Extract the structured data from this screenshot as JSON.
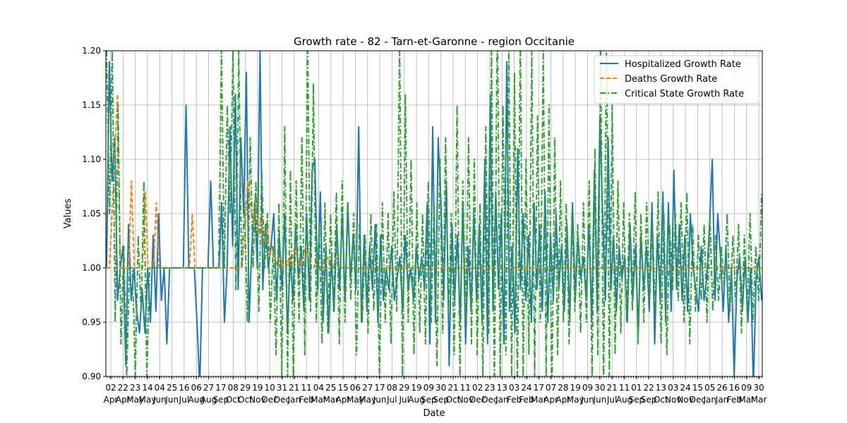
{
  "chart_data": {
    "type": "line",
    "title": "Growth rate - 82 - Tarn-et-Garonne - region Occitanie",
    "xlabel": "Date",
    "ylabel": "Values",
    "ylim": [
      0.9,
      1.2
    ],
    "grid": true,
    "legend_position": "top-right",
    "yticks": [
      "0.90",
      "0.95",
      "1.00",
      "1.05",
      "1.10",
      "1.15",
      "1.20"
    ],
    "xticks": [
      {
        "day": "02",
        "month": "Apr"
      },
      {
        "day": "22",
        "month": "Apr"
      },
      {
        "day": "23",
        "month": "May"
      },
      {
        "day": "14",
        "month": "May"
      },
      {
        "day": "04",
        "month": "Jun"
      },
      {
        "day": "25",
        "month": "Jun"
      },
      {
        "day": "16",
        "month": "Jul"
      },
      {
        "day": "06",
        "month": "Aug"
      },
      {
        "day": "27",
        "month": "Aug"
      },
      {
        "day": "17",
        "month": "Sep"
      },
      {
        "day": "08",
        "month": "Oct"
      },
      {
        "day": "29",
        "month": "Oct"
      },
      {
        "day": "19",
        "month": "Nov"
      },
      {
        "day": "10",
        "month": "Dec"
      },
      {
        "day": "31",
        "month": "Dec"
      },
      {
        "day": "21",
        "month": "Jan"
      },
      {
        "day": "11",
        "month": "Feb"
      },
      {
        "day": "04",
        "month": "Mar"
      },
      {
        "day": "25",
        "month": "Mar"
      },
      {
        "day": "15",
        "month": "Apr"
      },
      {
        "day": "06",
        "month": "May"
      },
      {
        "day": "27",
        "month": "May"
      },
      {
        "day": "17",
        "month": "Jun"
      },
      {
        "day": "08",
        "month": "Jul"
      },
      {
        "day": "29",
        "month": "Jul"
      },
      {
        "day": "19",
        "month": "Aug"
      },
      {
        "day": "09",
        "month": "Sep"
      },
      {
        "day": "30",
        "month": "Sep"
      },
      {
        "day": "21",
        "month": "Oct"
      },
      {
        "day": "11",
        "month": "Nov"
      },
      {
        "day": "02",
        "month": "Dec"
      },
      {
        "day": "23",
        "month": "Dec"
      },
      {
        "day": "13",
        "month": "Jan"
      },
      {
        "day": "03",
        "month": "Feb"
      },
      {
        "day": "24",
        "month": "Feb"
      },
      {
        "day": "17",
        "month": "Mar"
      },
      {
        "day": "07",
        "month": "Apr"
      },
      {
        "day": "28",
        "month": "Apr"
      },
      {
        "day": "19",
        "month": "May"
      },
      {
        "day": "09",
        "month": "Jun"
      },
      {
        "day": "30",
        "month": "Jun"
      },
      {
        "day": "21",
        "month": "Jul"
      },
      {
        "day": "11",
        "month": "Aug"
      },
      {
        "day": "01",
        "month": "Sep"
      },
      {
        "day": "22",
        "month": "Sep"
      },
      {
        "day": "13",
        "month": "Oct"
      },
      {
        "day": "03",
        "month": "Nov"
      },
      {
        "day": "24",
        "month": "Nov"
      },
      {
        "day": "15",
        "month": "Dec"
      },
      {
        "day": "05",
        "month": "Jan"
      },
      {
        "day": "26",
        "month": "Jan"
      },
      {
        "day": "16",
        "month": "Feb"
      },
      {
        "day": "09",
        "month": "Mar"
      },
      {
        "day": "30",
        "month": "Mar"
      }
    ],
    "series": [
      {
        "name": "Hospitalized Growth Rate",
        "color": "#1f77b4",
        "dash": "solid",
        "values": [
          1.0,
          1.19,
          1.08,
          1.12,
          0.97,
          1.0,
          1.02,
          0.91,
          1.04,
          0.97,
          1.0,
          0.96,
          0.94,
          0.98,
          0.94,
          1.0,
          0.95,
          1.03,
          0.96,
          1.05,
          0.97,
          1.0,
          0.93,
          1.0,
          1.0,
          1.0,
          1.0,
          1.0,
          1.0,
          1.15,
          1.0,
          1.0,
          1.0,
          0.95,
          0.89,
          1.0,
          1.0,
          1.0,
          1.08,
          1.0,
          1.0,
          1.0,
          1.06,
          0.95,
          1.0,
          1.13,
          1.02,
          1.16,
          0.98,
          1.12,
          1.05,
          1.18,
          0.95,
          1.02,
          1.06,
          1.0,
          1.2,
          0.98,
          1.04,
          1.0,
          1.02,
          1.05,
          0.97,
          1.03,
          0.98,
          1.05,
          0.94,
          1.01,
          0.97,
          1.04,
          0.99,
          1.02,
          0.96,
          1.05,
          0.97,
          1.09,
          1.1,
          0.98,
          1.07,
          0.95,
          1.02,
          0.94,
          1.01,
          0.96,
          1.04,
          0.98,
          1.05,
          0.97,
          1.06,
          0.99,
          1.03,
          0.98,
          1.13,
          0.95,
          1.03,
          0.96,
          1.02,
          0.98,
          1.04,
          0.95,
          1.03,
          0.97,
          1.0,
          0.98,
          1.02,
          0.97,
          0.99,
          1.01,
          0.96,
          1.03,
          0.98,
          1.0,
          0.97,
          1.02,
          0.99,
          1.01,
          0.98,
          1.06,
          0.93,
          1.13,
          0.95,
          1.12,
          1.06,
          0.97,
          1.08,
          0.91,
          1.04,
          0.97,
          1.03,
          0.95,
          1.06,
          0.93,
          1.02,
          0.96,
          1.05,
          0.97,
          1.04,
          0.95,
          1.1,
          0.93,
          1.16,
          0.96,
          1.07,
          0.98,
          1.05,
          0.93,
          1.19,
          0.96,
          1.02,
          0.94,
          1.11,
          0.98,
          1.05,
          0.97,
          1.03,
          0.95,
          1.06,
          0.98,
          1.04,
          0.96,
          1.07,
          0.95,
          1.03,
          0.97,
          1.05,
          0.98,
          1.02,
          0.96,
          1.04,
          0.95,
          1.06,
          0.97,
          1.03,
          0.99,
          1.01,
          0.97,
          1.04,
          0.95,
          1.09,
          0.96,
          1.14,
          1.05,
          0.97,
          1.12,
          0.98,
          1.03,
          0.96,
          1.02,
          0.99,
          1.01,
          0.95,
          1.04,
          0.97,
          1.02,
          0.94,
          1.03,
          0.98,
          1.02,
          0.96,
          1.06,
          0.93,
          1.03,
          0.97,
          1.07,
          0.95,
          1.06,
          0.96,
          1.09,
          0.98,
          1.04,
          0.97,
          1.03,
          0.96,
          1.05,
          1.0,
          0.98,
          0.96,
          1.02,
          0.97,
          0.99,
          1.04,
          1.1,
          0.97,
          1.05,
          1.01,
          0.96,
          1.02,
          0.95,
          1.0,
          0.9,
          0.99,
          1.01,
          0.96,
          1.01,
          0.95,
          1.0,
          0.89,
          0.99,
          1.01,
          0.97
        ]
      },
      {
        "name": "Deaths Growth Rate",
        "color": "#ff7f0e",
        "dash": "dashed",
        "values": [
          1.0,
          1.0,
          1.05,
          1.11,
          1.16,
          1.0,
          1.0,
          1.0,
          1.0,
          1.08,
          1.0,
          1.0,
          1.0,
          1.0,
          1.07,
          1.0,
          1.0,
          1.0,
          1.06,
          1.0,
          1.0,
          1.0,
          1.0,
          1.0,
          1.0,
          1.0,
          1.0,
          1.0,
          1.0,
          1.0,
          1.0,
          1.05,
          1.0,
          1.0,
          1.0,
          1.0,
          1.0,
          1.0,
          1.0,
          1.0,
          1.0,
          1.0,
          1.0,
          1.0,
          1.0,
          1.0,
          1.0,
          1.0,
          1.0,
          1.0,
          1.03,
          1.08,
          1.06,
          1.04,
          1.07,
          1.03,
          1.05,
          1.02,
          1.04,
          1.01,
          1.02,
          1.01,
          1.0,
          1.01,
          1.0,
          1.0,
          1.01,
          1.0,
          1.02,
          1.01,
          1.0,
          1.01,
          1.02,
          1.01,
          1.0,
          1.0,
          1.01,
          1.0,
          1.0,
          1.0,
          1.01,
          1.0,
          1.0,
          1.01,
          1.0,
          1.0,
          1.0,
          1.0,
          1.0,
          1.0,
          1.0,
          1.0,
          1.0,
          1.0,
          1.0,
          1.0,
          1.0,
          1.0,
          1.0,
          1.0,
          1.0,
          1.0,
          1.0,
          1.0,
          1.0,
          1.0,
          1.0,
          1.0,
          1.0,
          1.0,
          1.0,
          1.0,
          1.0,
          1.0,
          1.0,
          1.0,
          1.0,
          1.0,
          1.0,
          1.0,
          1.0,
          1.0,
          1.0,
          1.0,
          1.0,
          1.0,
          1.0,
          1.0,
          1.0,
          1.0,
          1.0,
          1.0,
          1.0,
          1.0,
          1.0,
          1.0,
          1.0,
          1.0,
          1.0,
          1.0,
          1.0,
          1.0,
          1.0,
          1.0,
          1.0,
          1.0,
          1.0,
          1.0,
          1.0,
          1.0,
          1.0,
          1.0,
          1.0,
          1.0,
          1.0,
          1.0,
          1.0,
          1.0,
          1.0,
          1.0,
          1.0,
          1.0,
          1.0,
          1.0,
          1.0,
          1.0,
          1.0,
          1.0,
          1.0,
          1.0,
          1.0,
          1.0,
          1.0,
          1.0,
          1.0,
          1.0,
          1.0,
          1.0,
          1.0,
          1.0,
          1.0,
          1.0,
          1.0,
          1.0,
          1.0,
          1.0,
          1.0,
          1.0,
          1.0,
          1.0,
          1.0,
          1.0,
          1.0,
          1.0,
          1.0,
          1.0,
          1.0,
          1.0,
          1.0,
          1.0,
          1.0,
          1.0,
          1.0,
          1.0,
          1.0,
          1.0,
          1.0,
          1.0,
          1.0,
          1.0,
          1.0,
          1.0,
          1.0,
          1.0,
          1.0,
          1.0,
          1.0,
          1.0,
          1.0,
          1.0,
          1.0,
          1.0,
          1.0,
          1.0,
          1.0,
          1.0,
          1.0,
          1.0,
          1.0,
          1.0,
          1.0,
          1.0,
          1.0,
          1.0,
          1.0,
          1.0,
          1.0,
          1.0
        ]
      },
      {
        "name": "Critical State Growth Rate",
        "color": "#2ca02c",
        "dash": "dashdot",
        "values": [
          1.2,
          1.05,
          1.2,
          0.95,
          1.15,
          0.93,
          1.02,
          0.9,
          1.0,
          1.0,
          0.9,
          1.03,
          0.96,
          1.08,
          0.9,
          1.0,
          1.0,
          1.0,
          1.0,
          1.0,
          1.0,
          1.0,
          1.0,
          1.0,
          1.0,
          1.0,
          1.0,
          1.0,
          1.0,
          1.0,
          1.0,
          1.0,
          1.0,
          1.0,
          1.0,
          1.0,
          1.0,
          1.0,
          1.0,
          1.0,
          1.2,
          1.0,
          1.15,
          1.05,
          1.2,
          0.98,
          1.2,
          1.0,
          1.06,
          0.95,
          1.12,
          1.0,
          1.08,
          0.96,
          1.09,
          1.0,
          1.05,
          0.95,
          1.02,
          0.92,
          1.06,
          0.9,
          1.13,
          0.9,
          1.09,
          0.9,
          1.08,
          0.95,
          1.12,
          0.92,
          1.21,
          0.96,
          1.17,
          0.95,
          1.04,
          0.93,
          1.06,
          0.94,
          1.05,
          0.96,
          1.07,
          0.93,
          1.08,
          0.95,
          1.06,
          0.97,
          1.05,
          0.92,
          1.04,
          0.95,
          1.03,
          0.94,
          1.05,
          0.96,
          1.04,
          0.9,
          1.06,
          0.95,
          1.05,
          0.93,
          1.07,
          0.96,
          1.21,
          0.9,
          1.16,
          0.95,
          1.1,
          0.92,
          1.06,
          0.94,
          1.05,
          0.93,
          1.08,
          0.95,
          1.06,
          0.91,
          1.1,
          0.94,
          1.12,
          0.96,
          1.05,
          0.92,
          1.15,
          0.9,
          1.08,
          0.95,
          1.12,
          0.93,
          1.1,
          0.92,
          1.06,
          0.9,
          1.13,
          0.94,
          1.2,
          0.88,
          1.25,
          0.9,
          1.15,
          0.92,
          1.2,
          0.9,
          1.18,
          0.88,
          1.22,
          0.9,
          1.1,
          0.92,
          1.2,
          0.9,
          1.14,
          0.95,
          1.2,
          0.9,
          1.15,
          0.88,
          1.12,
          0.92,
          1.08,
          0.95,
          1.06,
          0.93,
          1.05,
          0.96,
          1.04,
          0.94,
          1.06,
          0.95,
          1.08,
          0.9,
          1.11,
          0.92,
          1.2,
          0.88,
          1.22,
          0.9,
          1.15,
          0.92,
          1.08,
          0.94,
          1.06,
          0.95,
          1.05,
          0.96,
          1.07,
          0.93,
          1.05,
          0.95,
          1.06,
          0.97,
          1.04,
          0.96,
          1.07,
          0.93,
          1.05,
          0.92,
          1.04,
          0.98,
          1.05,
          0.97,
          1.06,
          0.95,
          1.07,
          0.93,
          1.04,
          0.96,
          1.03,
          0.97,
          1.04,
          0.95,
          1.05,
          0.96,
          1.03,
          0.97,
          1.02,
          0.98,
          1.05,
          0.96,
          1.03,
          0.97,
          1.04,
          0.94,
          1.03,
          0.96,
          1.05,
          0.95,
          1.02,
          0.97,
          1.07
        ]
      }
    ]
  }
}
